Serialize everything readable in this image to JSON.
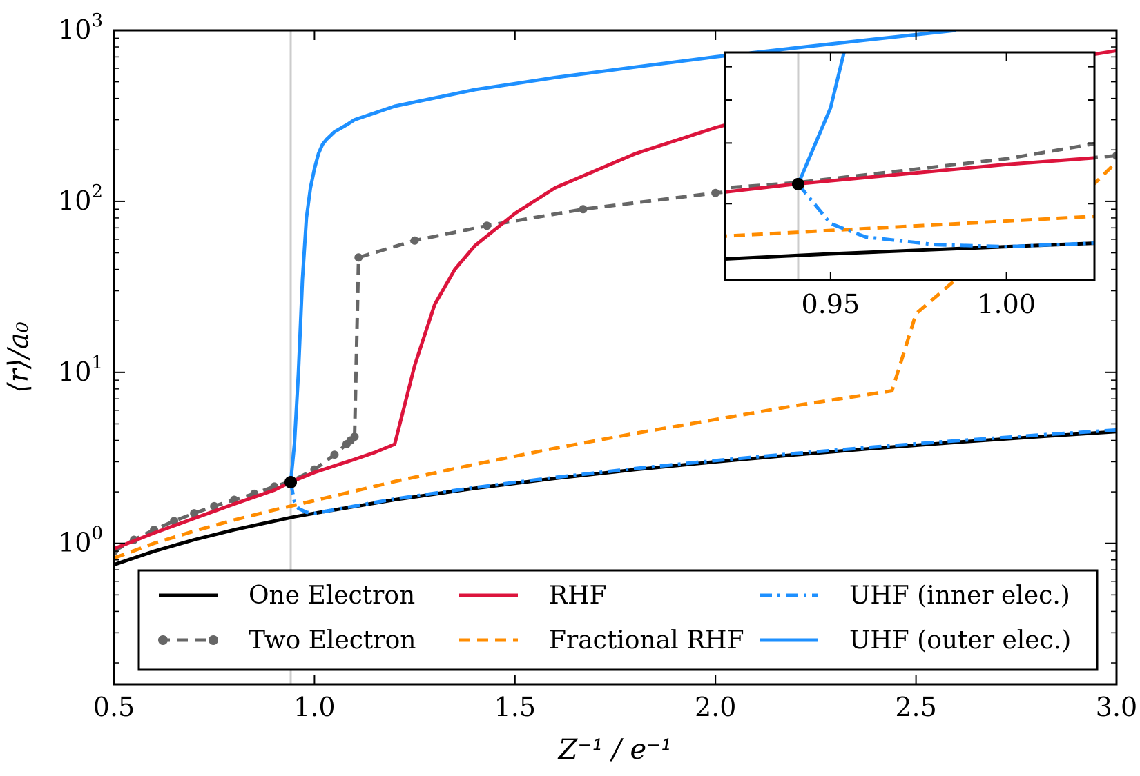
{
  "chart_data": {
    "type": "line",
    "xlabel": "Z⁻¹ / e⁻¹",
    "ylabel": "⟨r⟩/a₀",
    "xlim": [
      0.5,
      3.0
    ],
    "ylim": [
      0.15,
      1000
    ],
    "yscale": "log",
    "grid": false,
    "legend_position": "bottom",
    "x_ticks": [
      "0.5",
      "1.0",
      "1.5",
      "2.0",
      "2.5",
      "3.0"
    ],
    "x_tick_values": [
      0.5,
      1.0,
      1.5,
      2.0,
      2.5,
      3.0
    ],
    "y_ticks": [
      {
        "base": "10",
        "exp": "0",
        "value": 1
      },
      {
        "base": "10",
        "exp": "1",
        "value": 10
      },
      {
        "base": "10",
        "exp": "2",
        "value": 100
      },
      {
        "base": "10",
        "exp": "3",
        "value": 1000
      }
    ],
    "critical_line_x": 0.9408,
    "critical_point": {
      "x": 0.9408,
      "y": 2.28
    },
    "series": [
      {
        "name": "One Electron",
        "color": "#000000",
        "style": "solid",
        "x": [
          0.5,
          0.6,
          0.7,
          0.8,
          0.9,
          0.95,
          1.0,
          1.2,
          1.4,
          1.6,
          1.8,
          2.0,
          2.2,
          2.4,
          2.6,
          2.8,
          3.0
        ],
        "y": [
          0.75,
          0.9,
          1.05,
          1.2,
          1.35,
          1.43,
          1.5,
          1.8,
          2.1,
          2.4,
          2.7,
          3.0,
          3.3,
          3.6,
          3.9,
          4.2,
          4.5
        ]
      },
      {
        "name": "Two Electron",
        "color": "#666666",
        "style": "dashed-markers",
        "x": [
          0.5,
          0.55,
          0.6,
          0.65,
          0.7,
          0.75,
          0.8,
          0.85,
          0.9,
          0.94,
          1.0,
          1.05,
          1.08,
          1.09,
          1.1,
          1.11,
          1.25,
          1.43,
          1.67,
          2.0,
          2.5,
          3.0
        ],
        "y": [
          0.9,
          1.05,
          1.2,
          1.35,
          1.5,
          1.65,
          1.8,
          1.95,
          2.15,
          2.3,
          2.7,
          3.3,
          3.8,
          4.0,
          4.2,
          47,
          59,
          72,
          90,
          112,
          150,
          185
        ]
      },
      {
        "name": "RHF",
        "color": "#dc143c",
        "style": "solid",
        "x": [
          0.5,
          0.6,
          0.7,
          0.8,
          0.9,
          0.94,
          1.0,
          1.1,
          1.15,
          1.2,
          1.25,
          1.3,
          1.35,
          1.4,
          1.5,
          1.6,
          1.8,
          2.0,
          2.2,
          2.5,
          2.8,
          3.0
        ],
        "y": [
          0.93,
          1.15,
          1.4,
          1.7,
          2.05,
          2.28,
          2.6,
          3.1,
          3.4,
          3.8,
          11,
          25,
          40,
          55,
          85,
          120,
          190,
          270,
          360,
          480,
          640,
          760
        ]
      },
      {
        "name": "Fractional RHF",
        "color": "#ff8c00",
        "style": "dashed",
        "x": [
          0.5,
          0.6,
          0.7,
          0.8,
          0.9,
          1.0,
          1.2,
          1.4,
          1.6,
          1.8,
          2.0,
          2.2,
          2.44,
          2.5,
          2.6,
          2.7,
          2.8,
          2.9,
          3.0
        ],
        "y": [
          0.82,
          1.0,
          1.18,
          1.37,
          1.57,
          1.78,
          2.3,
          2.9,
          3.6,
          4.4,
          5.3,
          6.4,
          7.8,
          22,
          35,
          48,
          65,
          100,
          170
        ]
      },
      {
        "name": "UHF (inner elec.)",
        "color": "#1e90ff",
        "style": "dashdot",
        "x": [
          0.9408,
          0.95,
          0.96,
          0.98,
          1.0,
          1.2,
          1.4,
          1.6,
          1.8,
          2.0,
          2.2,
          2.4,
          2.6,
          2.8,
          3.0
        ],
        "y": [
          2.28,
          1.75,
          1.6,
          1.52,
          1.5,
          1.82,
          2.12,
          2.43,
          2.74,
          3.05,
          3.36,
          3.67,
          3.98,
          4.29,
          4.6
        ]
      },
      {
        "name": "UHF (outer elec.)",
        "color": "#1e90ff",
        "style": "solid",
        "x": [
          0.9408,
          0.95,
          0.96,
          0.97,
          0.98,
          0.99,
          1.0,
          1.01,
          1.02,
          1.03,
          1.05,
          1.08,
          1.1,
          1.2,
          1.4,
          1.6,
          1.8,
          2.0,
          2.2,
          2.4,
          2.6
        ],
        "y": [
          2.28,
          3.8,
          10,
          35,
          80,
          120,
          155,
          190,
          215,
          230,
          255,
          280,
          300,
          360,
          450,
          530,
          610,
          700,
          790,
          890,
          1000
        ]
      }
    ],
    "inset": {
      "xlim": [
        0.92,
        1.025
      ],
      "ylim": [
        1.2,
        5.5
      ],
      "x_ticks": [
        "0.95",
        "1.00"
      ],
      "x_tick_values": [
        0.95,
        1.0
      ]
    }
  }
}
